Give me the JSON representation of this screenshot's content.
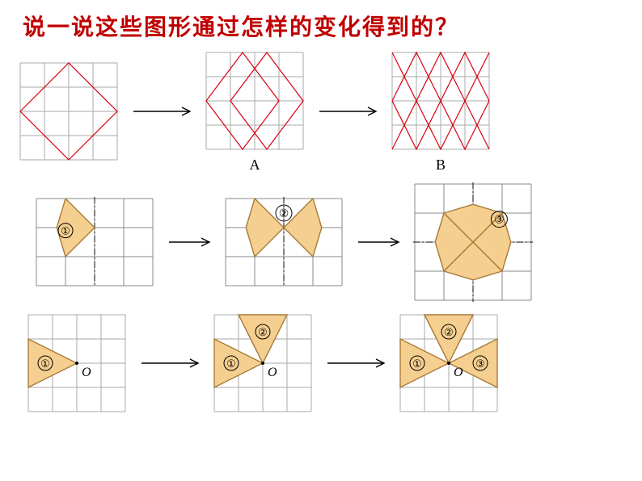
{
  "title": "说一说这些图形通过怎样的变化得到的？",
  "title_color": "#c00000",
  "title_fontsize": 28,
  "colors": {
    "grid": "#888888",
    "grid_light": "#aaaaaa",
    "rhombus": "#d9000f",
    "arrow": "#000000",
    "shape_fill": "#f5cf8f",
    "shape_stroke": "#a87b3a",
    "dash": "#333333",
    "text": "#000000"
  },
  "row1": {
    "labelA": "A",
    "labelB": "B",
    "grid": {
      "cols": 4,
      "rows": 4,
      "cell": 30
    },
    "rhombus_pattern": {
      "step1": [
        [
          0,
          2,
          2,
          0,
          4,
          2,
          2,
          4
        ]
      ],
      "step2": [
        [
          0,
          2,
          2,
          0,
          4,
          2,
          2,
          4
        ],
        [
          1,
          2,
          2,
          1,
          3,
          2,
          2,
          3
        ]
      ],
      "step3": [
        [
          0,
          2,
          1,
          0,
          2,
          2,
          1,
          4
        ],
        [
          1,
          2,
          2,
          0,
          3,
          2,
          2,
          4
        ],
        [
          2,
          2,
          3,
          0,
          4,
          2,
          3,
          4
        ],
        [
          0,
          2,
          0.5,
          1,
          1,
          2,
          0.5,
          3
        ],
        [
          3,
          2,
          3.5,
          1,
          4,
          2,
          3.5,
          3
        ]
      ]
    }
  },
  "row2": {
    "grid": {
      "cols": 4,
      "rows": 3,
      "cell": 36
    },
    "labels": {
      "1": "①",
      "2": "②",
      "3": "③"
    }
  },
  "row3": {
    "grid": {
      "cols": 4,
      "rows": 4,
      "cell": 30
    },
    "labels": {
      "1": "①",
      "2": "②",
      "3": "③",
      "O": "O"
    }
  },
  "arrow": {
    "length": 70,
    "head": 10,
    "stroke_width": 1.4
  }
}
